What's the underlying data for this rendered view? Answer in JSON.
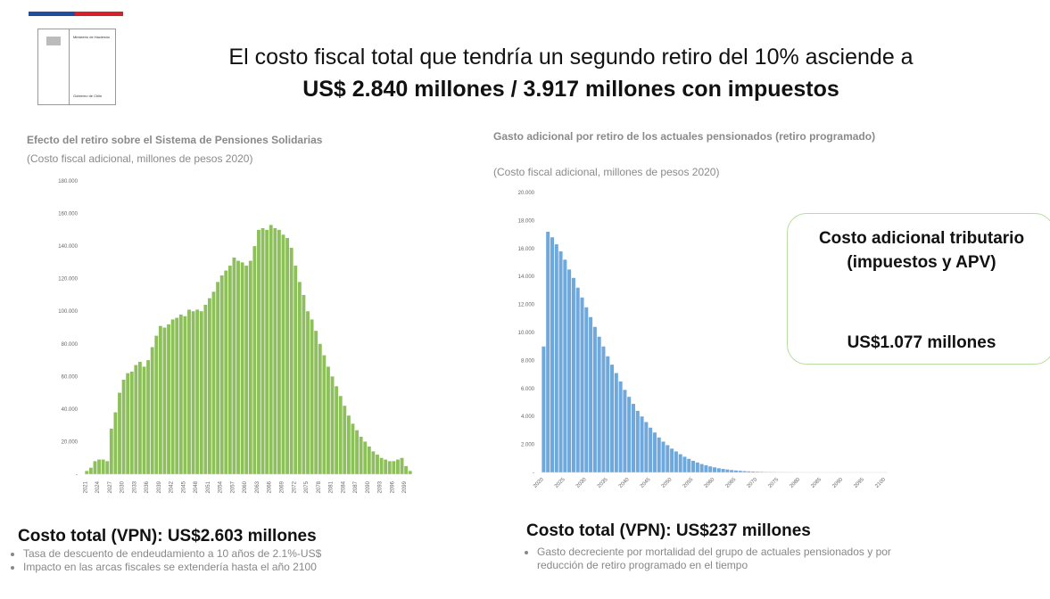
{
  "logo": {
    "name": "Ministerio de Hacienda",
    "footer": "Gobierno de Chile"
  },
  "title": {
    "line1": "El costo fiscal total que tendría un segundo retiro del 10% asciende a",
    "line2": "US$ 2.840 millones / 3.917 millones con impuestos"
  },
  "chart_data": [
    {
      "type": "bar",
      "title": "Efecto del retiro sobre el Sistema de Pensiones Solidarias",
      "subtitle": "(Costo fiscal adicional, millones de pesos 2020)",
      "color": "#8dc05a",
      "categories": [
        "2021",
        null,
        null,
        "2024",
        null,
        null,
        "2027",
        null,
        null,
        "2030",
        null,
        null,
        "2033",
        null,
        null,
        "2036",
        null,
        null,
        "2039",
        null,
        null,
        "2042",
        null,
        null,
        "2045",
        null,
        null,
        "2048",
        null,
        null,
        "2051",
        null,
        null,
        "2054",
        null,
        null,
        "2057",
        null,
        null,
        "2060",
        null,
        null,
        "2063",
        null,
        null,
        "2066",
        null,
        null,
        "2069",
        null,
        null,
        "2072",
        null,
        null,
        "2075",
        null,
        null,
        "2078",
        null,
        null,
        "2081",
        null,
        null,
        "2084",
        null,
        null,
        "2087",
        null,
        null,
        "2090",
        null,
        null,
        "2093",
        null,
        null,
        "2096",
        null,
        null,
        "2099",
        null
      ],
      "values": [
        2000,
        4000,
        8000,
        9000,
        9000,
        8000,
        28000,
        38000,
        50000,
        58000,
        62000,
        63000,
        67000,
        69000,
        66000,
        70000,
        78000,
        85000,
        91000,
        90000,
        92000,
        95000,
        96000,
        98000,
        97000,
        101000,
        100000,
        101000,
        100000,
        104000,
        108000,
        112000,
        118000,
        122000,
        125000,
        128000,
        133000,
        131000,
        130000,
        128000,
        131000,
        140000,
        150000,
        151000,
        150000,
        153000,
        151000,
        150000,
        147000,
        145000,
        139000,
        128000,
        118000,
        110000,
        100000,
        95000,
        88000,
        80000,
        73000,
        66000,
        60000,
        54000,
        48000,
        42000,
        36000,
        31000,
        27000,
        23000,
        20000,
        17000,
        14000,
        12000,
        10000,
        9000,
        8000,
        8000,
        9000,
        10000,
        5000,
        2000
      ],
      "ylim": [
        0,
        180000
      ],
      "yticks": [
        {
          "value": 0,
          "label": "-"
        },
        {
          "value": 20000,
          "label": "20.000"
        },
        {
          "value": 40000,
          "label": "40.000"
        },
        {
          "value": 60000,
          "label": "60.000"
        },
        {
          "value": 80000,
          "label": "80.000"
        },
        {
          "value": 100000,
          "label": "100.000"
        },
        {
          "value": 120000,
          "label": "120.000"
        },
        {
          "value": 140000,
          "label": "140.000"
        },
        {
          "value": 160000,
          "label": "160.000"
        },
        {
          "value": 180000,
          "label": "180.000"
        }
      ]
    },
    {
      "type": "bar",
      "title": "Gasto adicional por retiro de los actuales pensionados (retiro programado)",
      "subtitle": "(Costo fiscal adicional, millones de pesos 2020)",
      "color": "#6fa8dc",
      "categories": [
        "2020",
        null,
        null,
        null,
        null,
        "2025",
        null,
        null,
        null,
        null,
        "2030",
        null,
        null,
        null,
        null,
        "2035",
        null,
        null,
        null,
        null,
        "2040",
        null,
        null,
        null,
        null,
        "2045",
        null,
        null,
        null,
        null,
        "2050",
        null,
        null,
        null,
        null,
        "2055",
        null,
        null,
        null,
        null,
        "2060",
        null,
        null,
        null,
        null,
        "2065",
        null,
        null,
        null,
        null,
        "2070",
        null,
        null,
        null,
        null,
        "2075",
        null,
        null,
        null,
        null,
        "2080",
        null,
        null,
        null,
        null,
        "2085",
        null,
        null,
        null,
        null,
        "2090",
        null,
        null,
        null,
        null,
        "2095",
        null,
        null,
        null,
        null,
        "2100"
      ],
      "values": [
        9000,
        17200,
        16800,
        16300,
        15800,
        15200,
        14500,
        13900,
        13200,
        12500,
        11800,
        11100,
        10400,
        9700,
        9000,
        8300,
        7700,
        7100,
        6500,
        5900,
        5400,
        4900,
        4400,
        4000,
        3600,
        3200,
        2850,
        2500,
        2200,
        1950,
        1700,
        1500,
        1300,
        1120,
        970,
        830,
        710,
        600,
        510,
        430,
        360,
        300,
        250,
        210,
        170,
        140,
        115,
        95,
        78,
        63,
        51,
        41,
        33,
        26,
        21,
        17,
        13,
        10,
        8,
        6,
        5,
        4,
        3,
        2,
        2,
        1,
        1,
        1,
        1,
        0,
        0,
        0,
        0,
        0,
        0,
        0,
        0,
        0,
        0,
        0,
        0
      ],
      "ylim": [
        0,
        20000
      ],
      "yticks": [
        {
          "value": 0,
          "label": "-"
        },
        {
          "value": 2000,
          "label": "2.000"
        },
        {
          "value": 4000,
          "label": "4.000"
        },
        {
          "value": 6000,
          "label": "6.000"
        },
        {
          "value": 8000,
          "label": "8.000"
        },
        {
          "value": 10000,
          "label": "10.000"
        },
        {
          "value": 12000,
          "label": "12.000"
        },
        {
          "value": 14000,
          "label": "14.000"
        },
        {
          "value": 16000,
          "label": "16.000"
        },
        {
          "value": 18000,
          "label": "18.000"
        },
        {
          "value": 20000,
          "label": "20.000"
        }
      ]
    }
  ],
  "callout": {
    "heading": "Costo adicional tributario (impuestos y APV)",
    "amount": "US$1.077 millones"
  },
  "summary": [
    {
      "heading": "Costo total (VPN): US$2.603 millones",
      "bullets": [
        "Tasa de descuento de endeudamiento a 10 años de 2.1%-US$",
        "Impacto en las arcas fiscales se extendería hasta el año 2100"
      ]
    },
    {
      "heading": "Costo total (VPN): US$237 millones",
      "bullets": [
        "Gasto decreciente por mortalidad del grupo de actuales pensionados y por reducción de retiro programado en el tiempo"
      ]
    }
  ]
}
